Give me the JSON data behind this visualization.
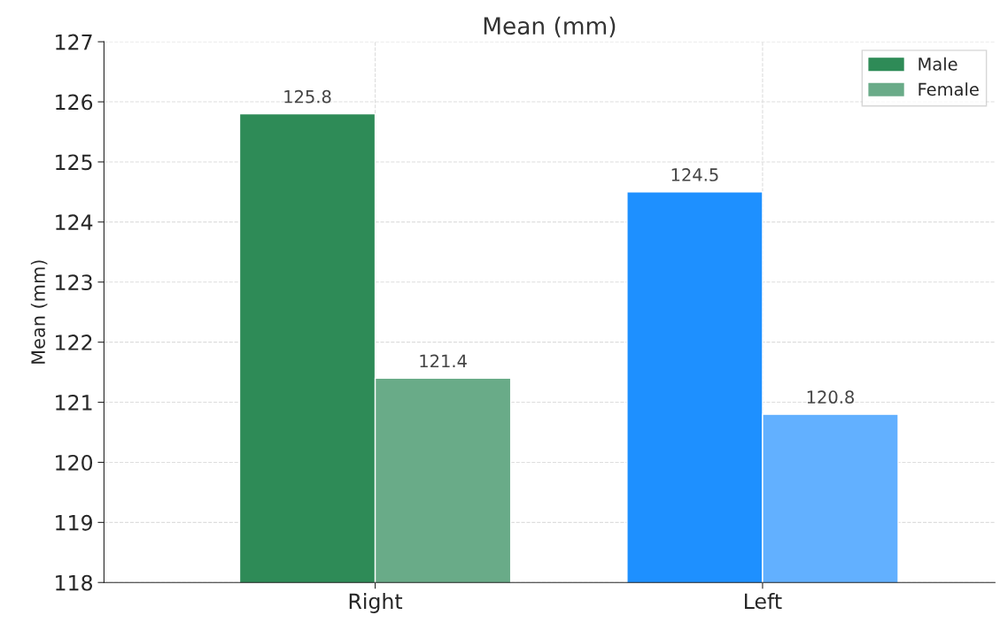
{
  "chart_data": {
    "type": "bar",
    "title": "Mean (mm)",
    "ylabel": "Mean (mm)",
    "categories": [
      "Right",
      "Left"
    ],
    "series": [
      {
        "name": "Male",
        "color": "#2e8b57",
        "colors": [
          "#2e8b57",
          "#1e90ff"
        ],
        "values": [
          125.8,
          124.5
        ]
      },
      {
        "name": "Female",
        "color": "#69ab88",
        "colors": [
          "#69ab88",
          "#62b0ff"
        ],
        "values": [
          121.4,
          120.8
        ]
      }
    ],
    "ylim": [
      118,
      127
    ],
    "yticks": [
      118,
      119,
      120,
      121,
      122,
      123,
      124,
      125,
      126,
      127
    ],
    "grid": true,
    "legend": "top right",
    "data_labels": true
  }
}
